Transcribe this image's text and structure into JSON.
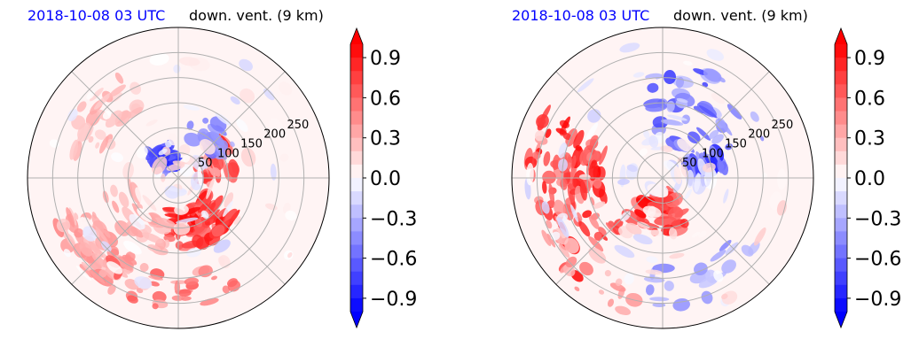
{
  "chart_data": [
    {
      "type": "heatmap",
      "projection": "polar",
      "title_date": "2018-10-08 03 UTC",
      "title": "down. vent. (9 km)",
      "radial_ticks": [
        50,
        100,
        150,
        200,
        250
      ],
      "colorbar": {
        "ticks": [
          0.9,
          0.6,
          0.3,
          0.0,
          -0.3,
          -0.6,
          -0.9
        ],
        "tick_labels": [
          "0.9",
          "0.6",
          "0.3",
          "0.0",
          "−0.3",
          "−0.6",
          "−0.9"
        ],
        "vmin": -1.0,
        "vmax": 1.0,
        "extend": "both"
      },
      "colors": {
        "positive": "#ff0000",
        "negative": "#0000ff",
        "zero": "#ffffff"
      },
      "grid": true
    },
    {
      "type": "heatmap",
      "projection": "polar",
      "title_date": "2018-10-08 03 UTC",
      "title": "down. vent. (9 km)",
      "radial_ticks": [
        50,
        100,
        150,
        200,
        250
      ],
      "colorbar": {
        "ticks": [
          0.9,
          0.6,
          0.3,
          0.0,
          -0.3,
          -0.6,
          -0.9
        ],
        "tick_labels": [
          "0.9",
          "0.6",
          "0.3",
          "0.0",
          "−0.3",
          "−0.6",
          "−0.9"
        ],
        "vmin": -1.0,
        "vmax": 1.0,
        "extend": "both"
      },
      "colors": {
        "positive": "#ff0000",
        "negative": "#0000ff",
        "zero": "#ffffff"
      },
      "grid": true
    }
  ]
}
